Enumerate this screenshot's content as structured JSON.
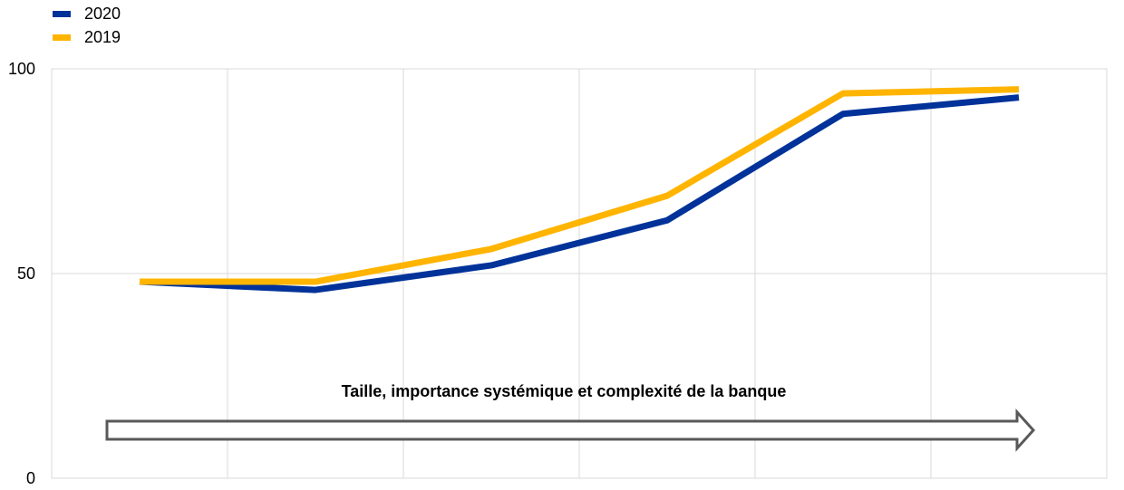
{
  "chart_data": {
    "type": "line",
    "x": [
      1,
      2,
      3,
      4,
      5,
      6
    ],
    "ylim": [
      0,
      100
    ],
    "yticks": [
      0,
      50,
      100
    ],
    "ytick_labels": [
      "0",
      "50",
      "100"
    ],
    "grid": true,
    "legend_position": "top-left",
    "series": [
      {
        "name": "2020",
        "color": "#003299",
        "values": [
          48,
          46,
          52,
          63,
          89,
          93
        ]
      },
      {
        "name": "2019",
        "color": "#FFB400",
        "values": [
          48,
          48,
          56,
          69,
          94,
          95
        ]
      }
    ],
    "annotation": {
      "text": "Taille, importance systémique et complexité de la banque",
      "arrow": "right"
    }
  }
}
